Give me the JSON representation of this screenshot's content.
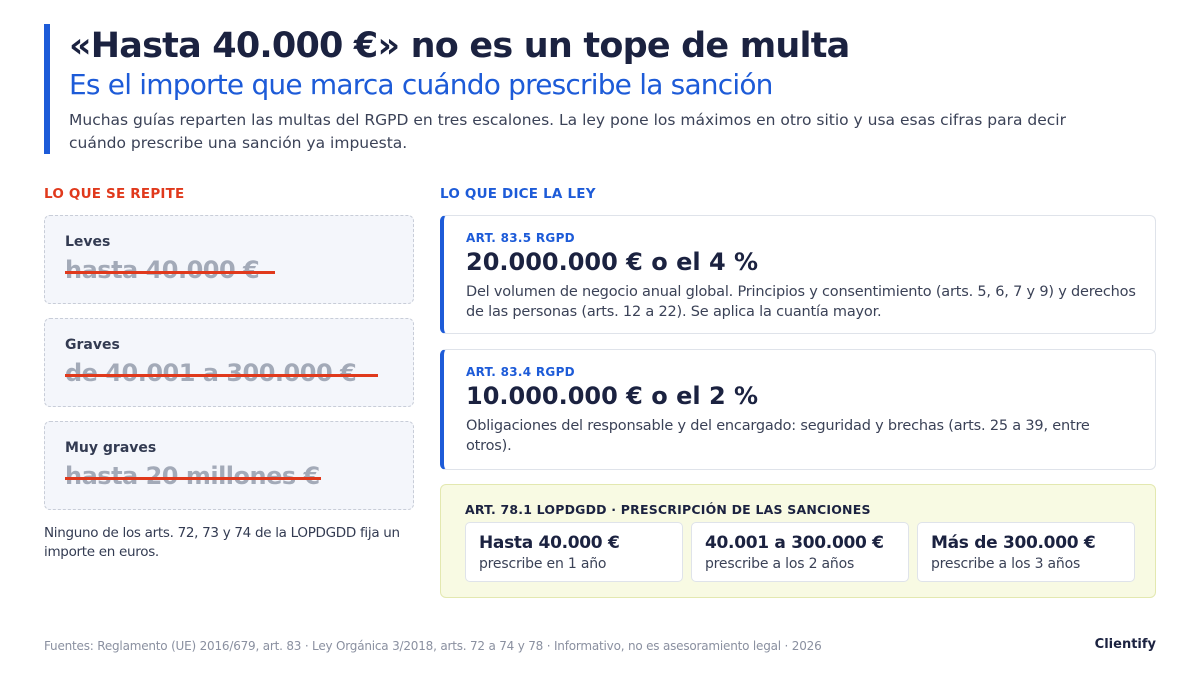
{
  "header": {
    "title": "«Hasta 40.000 €» no es un tope de multa",
    "subtitle": "Es el importe que marca cuándo prescribe la sanción",
    "intro": "Muchas guías reparten las multas del RGPD en tres escalones. La ley pone los máximos en otro sitio y usa esas cifras para decir cuándo prescribe una sanción ya impuesta."
  },
  "myths": {
    "label": "LO QUE SE REPITE",
    "items": [
      {
        "name": "Leves",
        "value": "hasta 40.000 €"
      },
      {
        "name": "Graves",
        "value": "de 40.001 a 300.000 €"
      },
      {
        "name": "Muy graves",
        "value": "hasta 20 millones €"
      }
    ],
    "note": "Ninguno de los arts. 72, 73 y 74 de la LOPDGDD fija un importe en euros."
  },
  "law": {
    "label": "LO QUE DICE LA LEY",
    "items": [
      {
        "tag": "ART. 83.5 RGPD",
        "amount": "20.000.000 € o el 4 %",
        "desc": "Del volumen de negocio anual global. Principios y consentimiento (arts. 5, 6, 7 y 9) y derechos de las personas (arts. 12 a 22). Se aplica la cuantía mayor."
      },
      {
        "tag": "ART. 83.4 RGPD",
        "amount": "10.000.000 € o el 2 %",
        "desc": "Obligaciones del responsable y del encargado: seguridad y brechas (arts. 25 a 39, entre otros)."
      }
    ]
  },
  "prescription": {
    "tag": "ART. 78.1 LOPDGDD · PRESCRIPCIÓN DE LAS SANCIONES",
    "items": [
      {
        "amount": "Hasta 40.000 €",
        "term": "prescribe en 1 año"
      },
      {
        "amount": "40.001 a 300.000 €",
        "term": "prescribe a los 2 años"
      },
      {
        "amount": "Más de 300.000 €",
        "term": "prescribe a los 3 años"
      }
    ]
  },
  "footer": {
    "sources": "Fuentes: Reglamento (UE) 2016/679, art. 83 · Ley Orgánica 3/2018, arts. 72 a 74 y 78 · Informativo, no es asesoramiento legal · 2026",
    "brand": "Clientify"
  },
  "colors": {
    "accent_blue": "#1d5bd8",
    "accent_red": "#e0391c",
    "navy": "#1b2240",
    "prescription_bg": "#f8fae3"
  }
}
